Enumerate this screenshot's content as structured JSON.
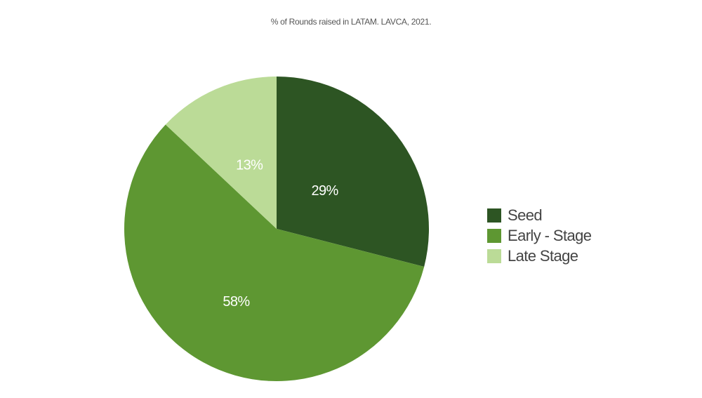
{
  "chart_data": {
    "type": "pie",
    "title": "% of Rounds raised in LATAM. LAVCA, 2021.",
    "slices": [
      {
        "name": "Seed",
        "value": 29,
        "label": "29%",
        "color": "#2d5523"
      },
      {
        "name": "Early - Stage",
        "value": 58,
        "label": "58%",
        "color": "#5e9732"
      },
      {
        "name": "Late Stage",
        "value": 13,
        "label": "13%",
        "color": "#bbdb97"
      }
    ],
    "legend_position": "right"
  }
}
